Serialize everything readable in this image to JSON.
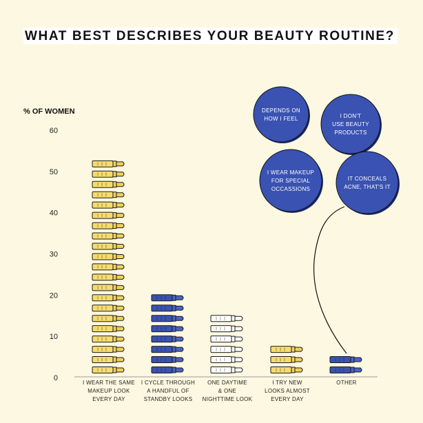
{
  "chart_data": {
    "type": "bar",
    "title": "WHAT BEST DESCRIBES YOUR BEAUTY ROUTINE?",
    "ylabel": "% OF WOMEN",
    "ylim": [
      0,
      60
    ],
    "yticks": [
      0,
      10,
      20,
      30,
      40,
      50,
      60
    ],
    "grid": false,
    "categories": [
      [
        "I WEAR THE SAME",
        "MAKEUP LOOK",
        "EVERY DAY"
      ],
      [
        "I CYCLE THROUGH",
        "A HANDFUL OF",
        "STANDBY LOOKS"
      ],
      [
        "ONE DAYTIME",
        "& ONE",
        "NIGHTTIME LOOK"
      ],
      [
        "I TRY NEW",
        "LOOKS ALMOST",
        "EVERY DAY"
      ],
      [
        "OTHER"
      ]
    ],
    "values": [
      53,
      21,
      16,
      8,
      5
    ],
    "colors": [
      "#f6dc6e",
      "#3a52b2",
      "#ffffff",
      "#f6dc6e",
      "#3a52b2"
    ],
    "other_breakdown": [
      [
        "DEPENDS ON",
        "HOW I FEEL"
      ],
      [
        "I DON'T",
        "USE BEAUTY",
        "PRODUCTS"
      ],
      [
        "I WEAR MAKEUP",
        "FOR SPECIAL",
        "OCCASSIONS"
      ],
      [
        "IT CONCEALS",
        "ACNE, THAT'S IT"
      ]
    ],
    "balloon_color": "#3a52b2",
    "icon": "lipstick-icon"
  }
}
